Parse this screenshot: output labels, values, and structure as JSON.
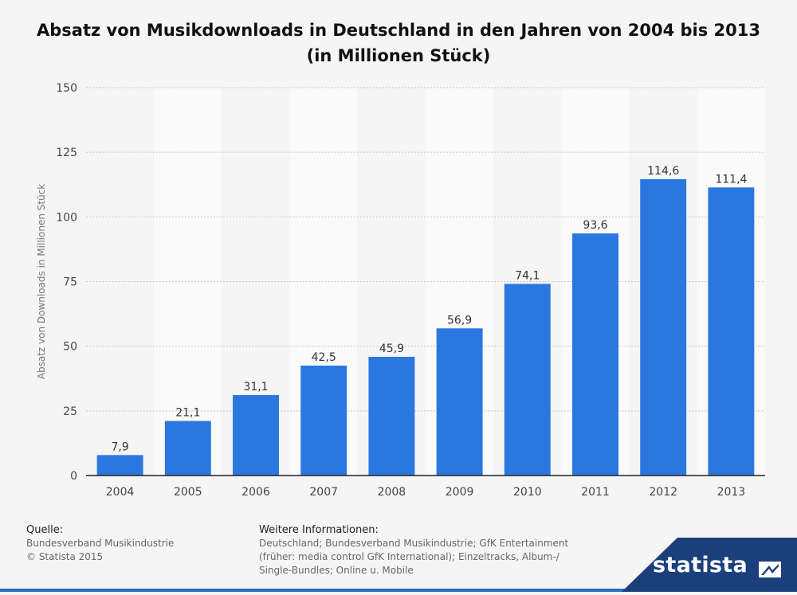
{
  "title": "Absatz von Musikdownloads in Deutschland in den Jahren von 2004 bis 2013 (in Millionen Stück)",
  "chart_data": {
    "type": "bar",
    "title": "Absatz von Musikdownloads in Deutschland in den Jahren von 2004 bis 2013 (in Millionen Stück)",
    "xlabel": "",
    "ylabel": "Absatz von Downloads in Millionen Stück",
    "categories": [
      "2004",
      "2005",
      "2006",
      "2007",
      "2008",
      "2009",
      "2010",
      "2011",
      "2012",
      "2013"
    ],
    "values": [
      7.9,
      21.1,
      31.1,
      42.5,
      45.9,
      56.9,
      74.1,
      93.6,
      114.6,
      111.4
    ],
    "value_labels": [
      "7,9",
      "21,1",
      "31,1",
      "42,5",
      "45,9",
      "56,9",
      "74,1",
      "93,6",
      "114,6",
      "111,4"
    ],
    "ylim": [
      0,
      150
    ],
    "yticks": [
      0,
      25,
      50,
      75,
      100,
      125,
      150
    ],
    "grid": true,
    "bar_color": "#2a77e0"
  },
  "footer": {
    "source_heading": "Quelle:",
    "source_lines": [
      "Bundesverband Musikindustrie",
      "© Statista 2015"
    ],
    "info_heading": "Weitere Informationen:",
    "info_lines": [
      "Deutschland; Bundesverband Musikindustrie; GfK Entertainment",
      "(früher: media control GfK International); Einzeltracks, Album-/",
      "Single-Bundles; Online u. Mobile"
    ]
  },
  "brand": {
    "name": "statista",
    "color": "#1b3f7a"
  }
}
